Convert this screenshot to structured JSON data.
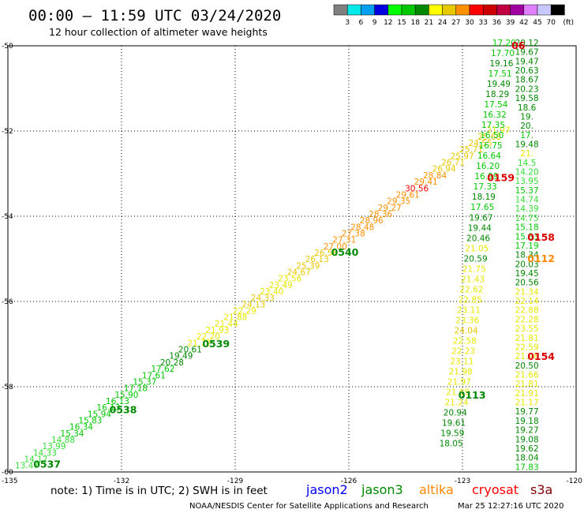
{
  "header": {
    "title": "00:00 – 11:59 UTC 03/24/2020",
    "subtitle": "12 hour collection of altimeter wave heights"
  },
  "colorbar": {
    "unit": "(ft)",
    "bins": [
      {
        "color": "#808080",
        "label": "3"
      },
      {
        "color": "#00e8e8",
        "label": "6"
      },
      {
        "color": "#00a0f0",
        "label": "9"
      },
      {
        "color": "#0000e0",
        "label": "12"
      },
      {
        "color": "#00ff00",
        "label": "15"
      },
      {
        "color": "#00c800",
        "label": "18"
      },
      {
        "color": "#008800",
        "label": "21"
      },
      {
        "color": "#ffff00",
        "label": "24"
      },
      {
        "color": "#e8c800",
        "label": "27"
      },
      {
        "color": "#ff9000",
        "label": "30"
      },
      {
        "color": "#ff0000",
        "label": "33"
      },
      {
        "color": "#cc0000",
        "label": "36"
      },
      {
        "color": "#c00040",
        "label": "39"
      },
      {
        "color": "#a000a0",
        "label": "42"
      },
      {
        "color": "#e080ff",
        "label": "45"
      },
      {
        "color": "#c8c8ff",
        "label": "70"
      },
      {
        "color": "#000000",
        "label": ""
      }
    ]
  },
  "chart_data": {
    "type": "scatter",
    "xlim": [
      -135,
      -120
    ],
    "ylim": [
      -60,
      -50
    ],
    "xticks": [
      -135,
      -132,
      -129,
      -126,
      -123,
      -120
    ],
    "xtick_labels": [
      "-135",
      "-132",
      "-129",
      "-126",
      "-123",
      "-120"
    ],
    "yticks": [
      -50,
      -52,
      -54,
      -56,
      -58,
      -60
    ],
    "ytick_labels": [
      "-50",
      "-52",
      "-54",
      "-56",
      "-58",
      "-60"
    ],
    "grid": true,
    "tracks": [
      {
        "pass": "0537",
        "start": [
          -134.5,
          -59.92
        ],
        "end": [
          -122.05,
          -52.05
        ],
        "values": [
          "13.47",
          "14.12",
          "14.33",
          "13.99",
          "14.88",
          "15.34",
          "16.34",
          "15.83",
          "15.94",
          "16.13",
          "16.13",
          "15.90",
          "17.18",
          "15.37",
          "17.61",
          "17.62",
          "20.28",
          "19.49",
          "20.61",
          "21.72",
          "22.20",
          "21.93",
          "21.44",
          "21.88",
          "22.29",
          "24.13",
          "24.33",
          "23.40",
          "23.49",
          "23.56",
          "24.67",
          "25.39",
          "26.13",
          "26.58",
          "27.00",
          "27.31",
          "27.38",
          "28.48",
          "28.96",
          "28.36",
          "29.27",
          "29.35",
          "29.61",
          "30.56",
          "29.41",
          "28.84",
          "26.94",
          "26.71",
          "25.97",
          "25.71",
          "24.55",
          "25.68",
          "21.97"
        ],
        "markers": [
          {
            "label": "0537",
            "at": -59.82
          },
          {
            "label": "0538",
            "at": -58.55
          },
          {
            "label": "0539",
            "at": -57.0
          },
          {
            "label": "0540",
            "at": -54.85
          }
        ]
      },
      {
        "pass": "0112",
        "start": [
          -121.3,
          -50.0
        ],
        "end": [
          -121.3,
          -59.95
        ],
        "values": [
          "20.12",
          "19.67",
          "19.47",
          "20.63",
          "18.67",
          "20.23",
          "19.58",
          "18.6",
          "19.",
          "20.",
          "17.",
          "19.48",
          "21.",
          "14.5",
          "14.20",
          "13.95",
          "15.37",
          "14.74",
          "14.39",
          "14.75",
          "15.18",
          "15.33",
          "17.19",
          "18.34",
          "20.03",
          "19.45",
          "20.56",
          "21.34",
          "22.14",
          "22.88",
          "22.28",
          "23.55",
          "21.81",
          "22.59",
          "21.98",
          "20.50",
          "21.66",
          "21.81",
          "21.91",
          "21.17",
          "19.77",
          "19.18",
          "19.27",
          "19.08",
          "19.62",
          "18.04",
          "17.83"
        ],
        "markers": [
          {
            "label": "0112",
            "at": -55.0
          },
          {
            "label": "0158",
            "at": -54.5
          },
          {
            "label": "0154",
            "at": -57.3
          }
        ]
      },
      {
        "pass": "0113",
        "start": [
          -121.9,
          -50.0
        ],
        "end": [
          -123.3,
          -59.4
        ],
        "values": [
          "17.20",
          "17.70",
          "19.16",
          "17.51",
          "19.49",
          "18.29",
          "17.54",
          "16.32",
          "17.35",
          "16.50",
          "16.75",
          "16.64",
          "16.20",
          "16.99",
          "17.33",
          "18.19",
          "17.65",
          "19.67",
          "19.44",
          "20.46",
          "21.05",
          "20.59",
          "21.75",
          "21.43",
          "22.62",
          "22.85",
          "23.11",
          "23.36",
          "24.04",
          "22.58",
          "22.23",
          "23.11",
          "21.98",
          "21.97",
          "21.69",
          "21.24",
          "20.94",
          "19.61",
          "19.59",
          "18.05"
        ],
        "markers": [
          {
            "label": "0113",
            "at": -58.2
          },
          {
            "label": "0159",
            "at": -53.1
          },
          {
            "label": "06",
            "at": -50.0
          }
        ]
      }
    ]
  },
  "footer": {
    "note": "note: 1) Time is in UTC; 2) SWH is in feet",
    "legend": [
      {
        "name": "jason2",
        "color": "#0000ff"
      },
      {
        "name": "jason3",
        "color": "#008800"
      },
      {
        "name": "altika",
        "color": "#ff8800"
      },
      {
        "name": "cryosat",
        "color": "#ff0000"
      },
      {
        "name": "s3a",
        "color": "#800000"
      }
    ],
    "credit_left": "NOAA/NESDIS Center for Satellite Applications and Research",
    "credit_right": "Mar 25 12:27:16 UTC 2020"
  }
}
